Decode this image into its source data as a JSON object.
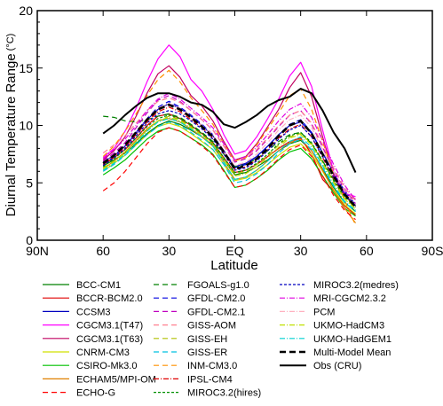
{
  "chart_data": {
    "type": "line",
    "title": "",
    "ylabel": "Diurnal Temperature Range",
    "ylabel_unit": "(°C)",
    "xlabel": "Latitude",
    "xlim": [
      90,
      -90
    ],
    "ylim": [
      0,
      20
    ],
    "x_ticks": [
      {
        "value": 90,
        "label": "90N"
      },
      {
        "value": 60,
        "label": "60"
      },
      {
        "value": 30,
        "label": "30"
      },
      {
        "value": 0,
        "label": "EQ"
      },
      {
        "value": -30,
        "label": "30"
      },
      {
        "value": -60,
        "label": "60"
      },
      {
        "value": -90,
        "label": "90S"
      }
    ],
    "y_ticks": [
      0,
      5,
      10,
      15,
      20
    ],
    "legend_position": "bottom",
    "x": [
      60,
      55,
      50,
      45,
      40,
      35,
      30,
      25,
      20,
      15,
      10,
      5,
      0,
      -5,
      -10,
      -15,
      -20,
      -25,
      -30,
      -35,
      -40,
      -45,
      -50,
      -55
    ],
    "series": [
      {
        "name": "BCC-CM1",
        "color": "#008000",
        "dash": "",
        "width": 1.2,
        "values": [
          6.5,
          7.0,
          7.6,
          8.4,
          9.3,
          10.0,
          10.4,
          10.1,
          9.6,
          9.0,
          8.3,
          7.0,
          5.7,
          5.9,
          6.4,
          7.0,
          7.8,
          8.4,
          8.7,
          7.8,
          6.2,
          4.6,
          3.3,
          2.5
        ]
      },
      {
        "name": "BCCR-BCM2.0",
        "color": "#e00000",
        "dash": "",
        "width": 1.2,
        "values": [
          6.6,
          7.2,
          7.9,
          8.9,
          10.0,
          10.8,
          11.0,
          10.6,
          10.0,
          9.3,
          8.5,
          7.2,
          5.9,
          6.1,
          6.6,
          7.3,
          8.0,
          8.6,
          8.9,
          7.5,
          5.3,
          4.3,
          3.0,
          2.2
        ]
      },
      {
        "name": "CCSM3",
        "color": "#0000c0",
        "dash": "",
        "width": 1.2,
        "values": [
          6.8,
          7.4,
          8.2,
          9.3,
          10.5,
          11.4,
          11.9,
          11.5,
          10.8,
          10.0,
          9.1,
          7.8,
          6.4,
          6.7,
          7.3,
          8.2,
          9.2,
          10.0,
          10.3,
          9.3,
          7.6,
          5.9,
          4.3,
          3.1
        ]
      },
      {
        "name": "CGCM3.1(T47)",
        "color": "#ff00ff",
        "dash": "",
        "width": 1.2,
        "values": [
          7.2,
          8.0,
          9.5,
          11.5,
          13.8,
          15.8,
          17.0,
          16.0,
          14.0,
          13.0,
          11.4,
          9.2,
          7.5,
          7.8,
          9.0,
          10.6,
          12.3,
          14.3,
          15.5,
          13.4,
          9.6,
          6.0,
          4.1,
          3.8
        ]
      },
      {
        "name": "CGCM3.1(T63)",
        "color": "#c00060",
        "dash": "",
        "width": 1.2,
        "values": [
          7.0,
          7.8,
          9.0,
          10.8,
          12.8,
          14.5,
          15.2,
          14.2,
          12.6,
          11.7,
          10.4,
          8.6,
          7.0,
          7.3,
          8.4,
          9.9,
          11.4,
          13.3,
          14.6,
          12.5,
          9.0,
          5.7,
          3.9,
          3.6
        ]
      },
      {
        "name": "CNRM-CM3",
        "color": "#d0e000",
        "dash": "",
        "width": 1.2,
        "values": [
          6.0,
          6.7,
          7.4,
          8.3,
          9.2,
          9.9,
          10.2,
          9.9,
          9.3,
          8.6,
          7.9,
          6.6,
          5.2,
          5.4,
          5.9,
          6.6,
          7.4,
          8.1,
          8.4,
          7.5,
          6.0,
          4.4,
          3.1,
          2.3
        ]
      },
      {
        "name": "CSIRO-Mk3.0",
        "color": "#00c000",
        "dash": "",
        "width": 1.2,
        "values": [
          5.7,
          6.3,
          7.0,
          7.9,
          8.8,
          9.5,
          9.8,
          9.5,
          8.9,
          8.3,
          7.5,
          6.1,
          4.6,
          4.8,
          5.4,
          6.1,
          7.0,
          7.7,
          8.0,
          7.1,
          5.6,
          4.1,
          2.8,
          2.1
        ]
      },
      {
        "name": "ECHAM5/MPI-OM",
        "color": "#e08000",
        "dash": "",
        "width": 1.2,
        "values": [
          6.2,
          6.9,
          7.7,
          8.7,
          9.7,
          10.4,
          10.6,
          10.3,
          9.7,
          9.0,
          8.2,
          6.8,
          5.3,
          5.5,
          6.1,
          6.9,
          7.8,
          8.5,
          8.8,
          7.8,
          6.1,
          4.3,
          2.8,
          1.5
        ]
      },
      {
        "name": "ECHO-G",
        "color": "#ff0000",
        "dash": "6,4",
        "width": 1.2,
        "values": [
          4.3,
          5.0,
          6.0,
          7.2,
          8.4,
          9.4,
          9.8,
          9.5,
          8.9,
          8.2,
          7.4,
          6.0,
          4.6,
          4.8,
          5.4,
          6.2,
          7.1,
          7.9,
          8.3,
          7.3,
          5.6,
          3.9,
          2.6,
          1.8
        ]
      },
      {
        "name": "FGOALS-g1.0",
        "color": "#008000",
        "dash": "6,4",
        "width": 1.2,
        "values": [
          10.8,
          10.7,
          10.4,
          10.3,
          10.5,
          10.8,
          11.0,
          10.7,
          10.1,
          9.4,
          8.6,
          7.5,
          6.4,
          6.6,
          7.1,
          7.8,
          8.6,
          9.2,
          9.4,
          8.4,
          6.9,
          5.3,
          3.9,
          3.0
        ]
      },
      {
        "name": "GFDL-CM2.0",
        "color": "#0000e0",
        "dash": "6,4",
        "width": 1.2,
        "values": [
          6.6,
          7.3,
          8.2,
          9.4,
          10.6,
          11.6,
          12.1,
          11.6,
          10.9,
          10.1,
          9.2,
          7.8,
          6.3,
          6.6,
          7.3,
          8.2,
          9.2,
          10.1,
          10.5,
          9.4,
          7.6,
          5.8,
          4.2,
          3.0
        ]
      },
      {
        "name": "GFDL-CM2.1",
        "color": "#c000c0",
        "dash": "6,4",
        "width": 1.2,
        "values": [
          6.9,
          7.6,
          8.5,
          9.8,
          11.1,
          12.2,
          12.6,
          12.1,
          11.3,
          10.5,
          9.6,
          8.2,
          6.8,
          7.1,
          7.8,
          8.8,
          9.9,
          10.9,
          11.3,
          10.1,
          8.1,
          6.1,
          4.4,
          3.2
        ]
      },
      {
        "name": "GISS-AOM",
        "color": "#ff8090",
        "dash": "6,4",
        "width": 1.2,
        "values": [
          7.6,
          8.3,
          9.1,
          10.2,
          11.3,
          12.1,
          12.4,
          12.0,
          11.3,
          10.5,
          9.6,
          8.2,
          6.9,
          7.2,
          7.9,
          8.9,
          10.0,
          10.9,
          11.3,
          10.2,
          8.3,
          6.3,
          4.6,
          3.4
        ]
      },
      {
        "name": "GISS-EH",
        "color": "#b0c000",
        "dash": "6,4",
        "width": 1.2,
        "values": [
          6.3,
          6.9,
          7.7,
          8.6,
          9.6,
          10.4,
          10.8,
          10.5,
          9.9,
          9.2,
          8.4,
          7.1,
          5.8,
          6.0,
          6.6,
          7.4,
          8.3,
          9.0,
          9.3,
          8.4,
          6.8,
          5.1,
          3.7,
          2.8
        ]
      },
      {
        "name": "GISS-ER",
        "color": "#00c0e0",
        "dash": "6,4",
        "width": 1.2,
        "values": [
          6.0,
          6.6,
          7.4,
          8.3,
          9.2,
          9.9,
          10.3,
          10.0,
          9.4,
          8.7,
          7.9,
          6.6,
          5.0,
          5.2,
          5.8,
          6.6,
          7.6,
          8.4,
          8.8,
          7.9,
          6.3,
          4.7,
          3.3,
          2.5
        ]
      },
      {
        "name": "INM-CM3.0",
        "color": "#ff9000",
        "dash": "6,4",
        "width": 1.2,
        "values": [
          7.3,
          8.2,
          9.5,
          11.0,
          12.6,
          14.0,
          14.8,
          13.8,
          12.4,
          11.3,
          10.1,
          8.4,
          6.9,
          7.2,
          8.3,
          9.7,
          11.1,
          12.6,
          13.2,
          11.4,
          8.6,
          5.7,
          3.5,
          1.3
        ]
      },
      {
        "name": "IPSL-CM4",
        "color": "#e00000",
        "dash": "6,2,1,2",
        "width": 1.2,
        "values": [
          6.6,
          7.3,
          8.1,
          9.2,
          10.3,
          11.2,
          11.6,
          11.2,
          10.5,
          9.8,
          8.9,
          7.6,
          6.2,
          6.4,
          7.0,
          7.9,
          8.9,
          9.7,
          10.1,
          9.0,
          7.2,
          5.4,
          3.9,
          2.9
        ]
      },
      {
        "name": "MIROC3.2(hires)",
        "color": "#009000",
        "dash": "3,2",
        "width": 1.2,
        "values": [
          6.4,
          7.1,
          7.9,
          8.9,
          9.9,
          10.6,
          10.9,
          10.6,
          10.0,
          9.3,
          8.5,
          7.2,
          5.9,
          6.1,
          6.7,
          7.5,
          8.4,
          9.1,
          9.4,
          8.5,
          6.9,
          5.2,
          3.8,
          2.9
        ]
      },
      {
        "name": "MIROC3.2(medres)",
        "color": "#0000c0",
        "dash": "3,2",
        "width": 1.2,
        "values": [
          6.5,
          7.2,
          8.0,
          9.1,
          10.2,
          11.0,
          11.3,
          11.0,
          10.4,
          9.7,
          8.8,
          7.5,
          6.1,
          6.3,
          6.9,
          7.8,
          8.8,
          9.6,
          10.0,
          9.0,
          7.3,
          5.5,
          4.0,
          3.0
        ]
      },
      {
        "name": "MRI-CGCM2.3.2",
        "color": "#e000e0",
        "dash": "6,2,1,2",
        "width": 1.2,
        "values": [
          7.1,
          7.9,
          8.8,
          10.0,
          11.3,
          12.3,
          12.8,
          12.3,
          11.5,
          10.7,
          9.8,
          8.4,
          7.0,
          7.3,
          8.1,
          9.2,
          10.4,
          11.4,
          11.9,
          10.7,
          8.7,
          6.6,
          4.8,
          3.5
        ]
      },
      {
        "name": "PCM",
        "color": "#ffb0c0",
        "dash": "6,2,1,2",
        "width": 1.2,
        "values": [
          6.7,
          7.4,
          8.3,
          9.4,
          10.6,
          11.5,
          11.9,
          11.5,
          10.8,
          10.0,
          9.2,
          7.8,
          6.5,
          6.8,
          7.5,
          8.5,
          9.6,
          10.5,
          10.9,
          9.8,
          7.9,
          6.0,
          4.3,
          3.1
        ]
      },
      {
        "name": "UKMO-HadCM3",
        "color": "#c0e000",
        "dash": "6,2,1,2",
        "width": 1.2,
        "values": [
          6.2,
          6.8,
          7.6,
          8.6,
          9.6,
          10.4,
          10.7,
          10.4,
          9.8,
          9.1,
          8.3,
          7.0,
          5.6,
          5.8,
          6.4,
          7.2,
          8.1,
          8.9,
          9.2,
          8.3,
          6.7,
          5.0,
          3.6,
          2.7
        ]
      },
      {
        "name": "UKMO-HadGEM1",
        "color": "#00d0d0",
        "dash": "6,2,1,2",
        "width": 1.2,
        "values": [
          6.1,
          6.7,
          7.5,
          8.5,
          9.5,
          10.3,
          10.6,
          10.3,
          9.7,
          9.0,
          8.2,
          6.8,
          5.3,
          5.5,
          6.1,
          6.9,
          7.8,
          8.6,
          9.0,
          8.1,
          6.5,
          4.8,
          3.4,
          2.6
        ]
      },
      {
        "name": "Multi-Model Mean",
        "color": "#000000",
        "dash": "7,4",
        "width": 2.6,
        "values": [
          6.7,
          7.4,
          8.3,
          9.4,
          10.5,
          11.4,
          11.8,
          11.4,
          10.7,
          9.9,
          9.0,
          7.7,
          6.2,
          6.5,
          7.1,
          8.0,
          9.1,
          10.0,
          10.4,
          9.3,
          7.5,
          5.6,
          4.0,
          2.9
        ]
      },
      {
        "name": "Obs (CRU)",
        "color": "#000000",
        "dash": "",
        "width": 2.0,
        "values": [
          9.3,
          10.0,
          10.9,
          11.7,
          12.4,
          12.8,
          12.8,
          12.5,
          12.0,
          11.8,
          11.2,
          10.1,
          9.8,
          10.3,
          10.9,
          11.7,
          12.2,
          12.5,
          13.2,
          12.8,
          11.3,
          9.4,
          8.0,
          5.9
        ]
      }
    ]
  }
}
